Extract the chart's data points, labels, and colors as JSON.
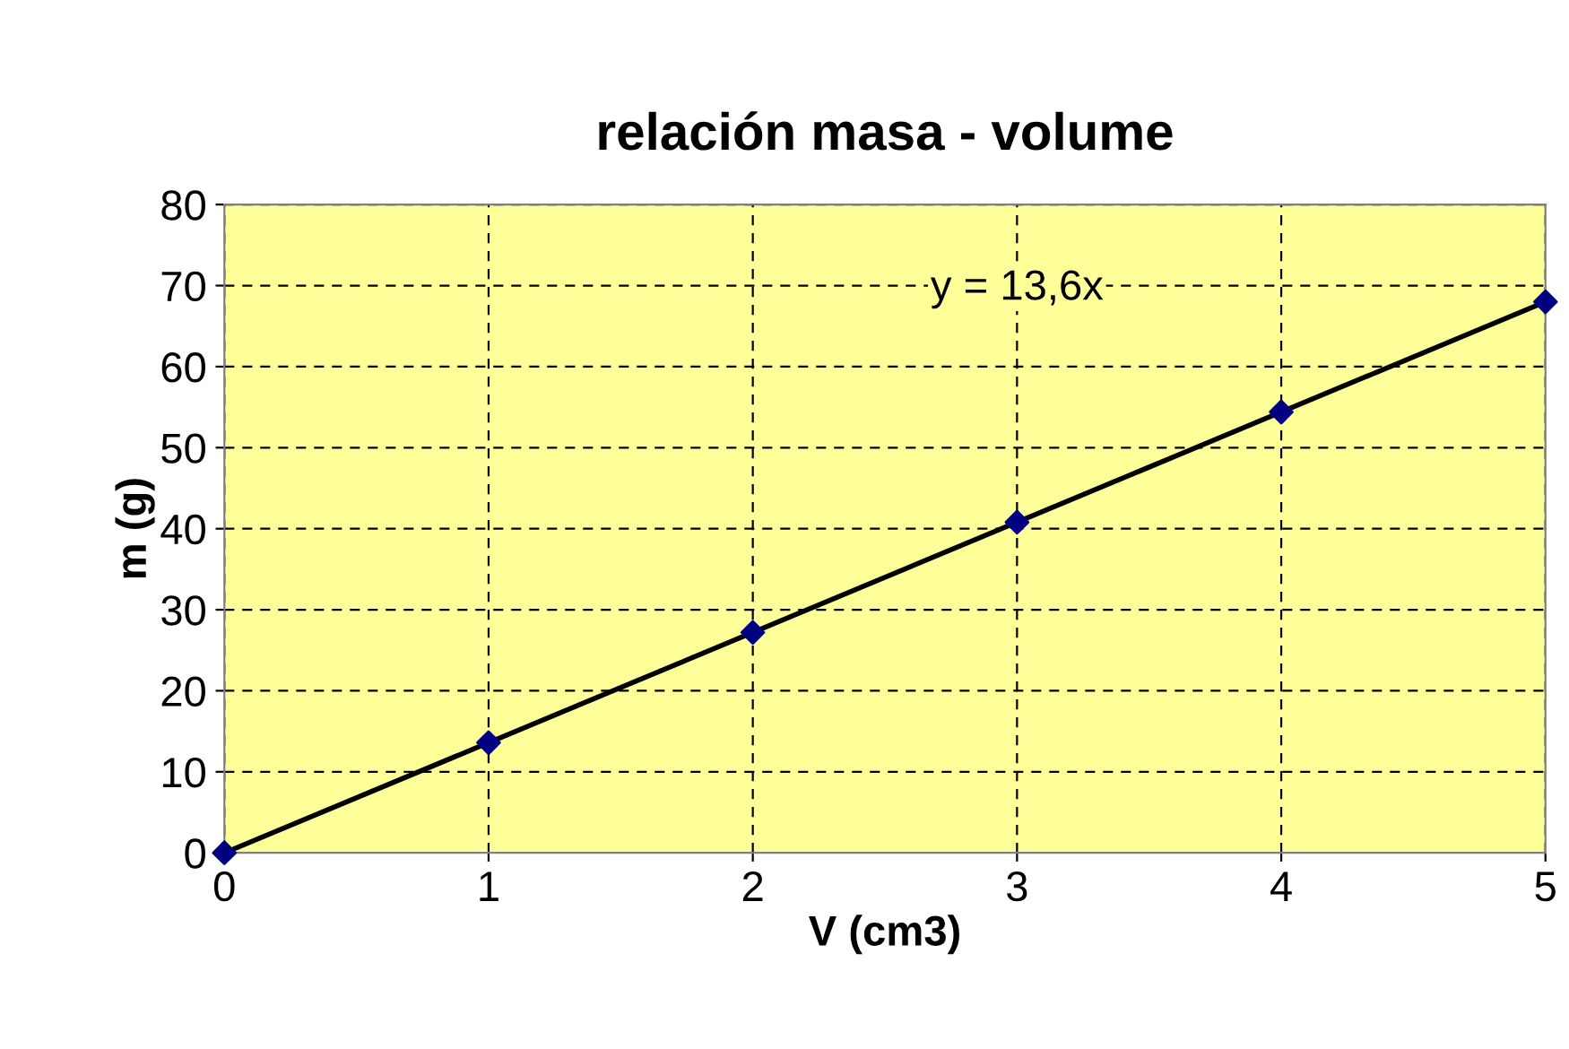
{
  "chart_data": {
    "type": "scatter",
    "title": "relación masa - volume",
    "xlabel": "V (cm3)",
    "ylabel": "m (g)",
    "x": [
      0,
      1,
      2,
      3,
      4,
      5
    ],
    "series": [
      {
        "color": "#000080",
        "marker": "diamond",
        "values": [
          0,
          13.6,
          27.2,
          40.8,
          54.4,
          68
        ]
      },
      {
        "type": "line",
        "color": "#000000",
        "marker": "none",
        "x": [
          0,
          5
        ],
        "values": [
          0,
          68
        ]
      }
    ],
    "annotations": [
      "y = 13,6x"
    ],
    "xlim": [
      0,
      5
    ],
    "xticks": [
      0,
      1,
      2,
      3,
      4,
      5
    ],
    "ylim": [
      0,
      80
    ],
    "yticks": [
      0,
      10,
      20,
      30,
      40,
      50,
      60,
      70,
      80
    ],
    "grid": true,
    "legend": false
  }
}
